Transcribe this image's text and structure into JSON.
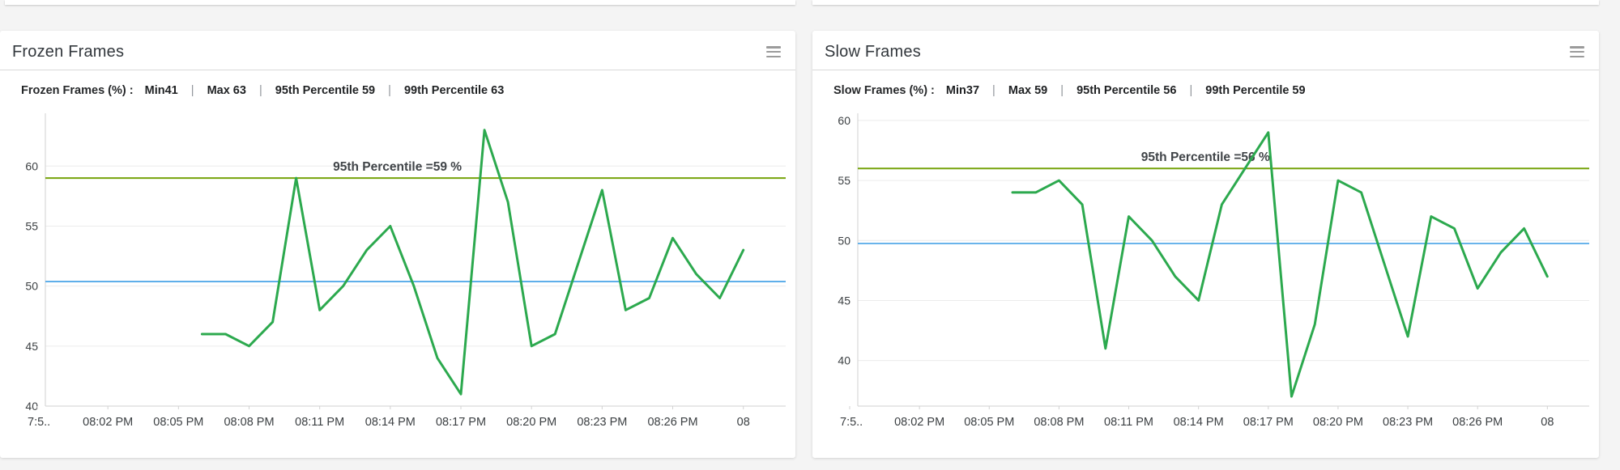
{
  "panels": [
    {
      "title": "Frozen Frames",
      "stats": {
        "prefix": "Frozen Frames (%) :",
        "sep": "|",
        "items": [
          "Min41",
          "Max 63",
          "95th Percentile 59",
          "99th Percentile 63"
        ]
      }
    },
    {
      "title": "Slow Frames",
      "stats": {
        "prefix": "Slow Frames (%) :",
        "sep": "|",
        "items": [
          "Min37",
          "Max 59",
          "95th Percentile 56",
          "99th Percentile 59"
        ]
      }
    }
  ],
  "colors": {
    "series_green": "#2ca94e",
    "percentile_olive": "#76a30b",
    "average_blue": "#54a9e8",
    "grid": "#ececec",
    "axis": "#d2d2d2",
    "tick_text": "#3c4043",
    "annotation_text": "#404448"
  },
  "chart_data": [
    {
      "type": "line",
      "title": "Frozen Frames (%)",
      "x_tick_labels": [
        "7:5..",
        "08:02 PM",
        "08:05 PM",
        "08:08 PM",
        "08:11 PM",
        "08:14 PM",
        "08:17 PM",
        "08:20 PM",
        "08:23 PM",
        "08:26 PM",
        "08"
      ],
      "x_tick_minutes": [
        0,
        3,
        6,
        9,
        12,
        15,
        18,
        21,
        24,
        27,
        30
      ],
      "x_minutes": [
        7,
        8,
        9,
        10,
        11,
        12,
        13,
        14,
        15,
        16,
        17,
        18,
        19,
        20,
        21,
        22,
        23,
        24,
        25,
        26,
        27,
        28,
        29,
        30
      ],
      "values": [
        46,
        46,
        45,
        47,
        59,
        48,
        50,
        53,
        55,
        50,
        44,
        41,
        63,
        57,
        45,
        46,
        52,
        58,
        48,
        49,
        54,
        51,
        49,
        53
      ],
      "y_ticks": [
        40,
        45,
        50,
        55,
        60
      ],
      "ylim": [
        40,
        64.4
      ],
      "grid": true,
      "legend": "none",
      "percentile_line": {
        "value": 59,
        "label": "95th Percentile =59 %",
        "label_minute": 15.3
      },
      "average_line": {
        "value": 50.375
      }
    },
    {
      "type": "line",
      "title": "Slow Frames (%)",
      "x_tick_labels": [
        "7:5..",
        "08:02 PM",
        "08:05 PM",
        "08:08 PM",
        "08:11 PM",
        "08:14 PM",
        "08:17 PM",
        "08:20 PM",
        "08:23 PM",
        "08:26 PM",
        "08"
      ],
      "x_tick_minutes": [
        0,
        3,
        6,
        9,
        12,
        15,
        18,
        21,
        24,
        27,
        30
      ],
      "x_minutes": [
        7,
        8,
        9,
        10,
        11,
        12,
        13,
        14,
        15,
        16,
        17,
        18,
        19,
        20,
        21,
        22,
        23,
        24,
        25,
        26,
        27,
        28,
        29,
        30
      ],
      "values": [
        54,
        54,
        55,
        53,
        41,
        52,
        50,
        47,
        45,
        53,
        56,
        59,
        37,
        43,
        55,
        54,
        48,
        42,
        52,
        51,
        46,
        49,
        51,
        47
      ],
      "y_ticks": [
        40,
        45,
        50,
        55,
        60
      ],
      "ylim": [
        36.2,
        60.6
      ],
      "grid": true,
      "legend": "none",
      "percentile_line": {
        "value": 56,
        "label": "95th Percentile =56 %",
        "label_minute": 15.3
      },
      "average_line": {
        "value": 49.75
      }
    }
  ]
}
